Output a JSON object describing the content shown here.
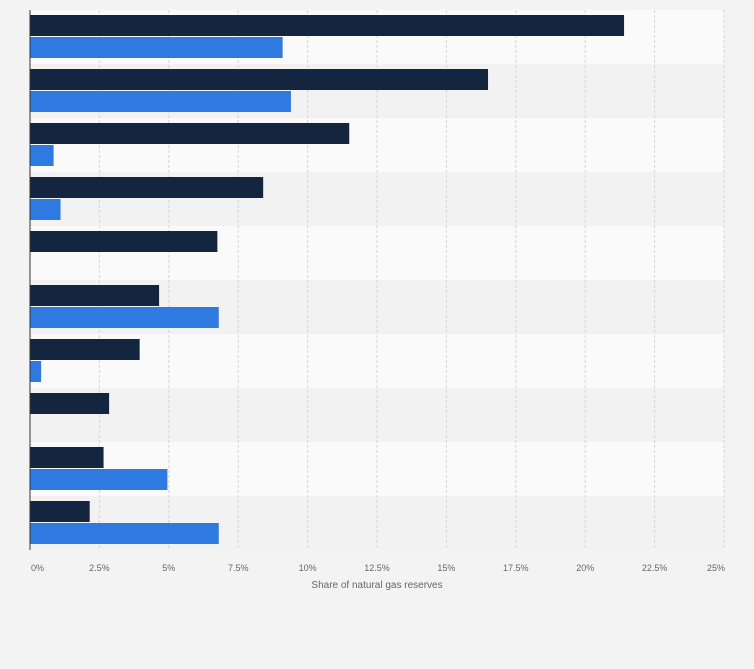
{
  "chart_data": {
    "type": "bar",
    "orientation": "horizontal",
    "categories": [
      "",
      "",
      "",
      "",
      "",
      "",
      "",
      "",
      "",
      ""
    ],
    "series": [
      {
        "values": [
          21.4,
          16.5,
          11.5,
          8.4,
          6.75,
          4.65,
          3.95,
          2.85,
          2.65,
          2.15
        ]
      },
      {
        "values": [
          9.1,
          9.4,
          0.85,
          1.1,
          null,
          6.8,
          0.4,
          null,
          4.95,
          6.8
        ]
      }
    ],
    "xlabel": "Share of natural gas reserves",
    "ylabel": "",
    "xlim": [
      0,
      25
    ],
    "x_ticks": [
      "0%",
      "2.5%",
      "5%",
      "7.5%",
      "10%",
      "12.5%",
      "15%",
      "17.5%",
      "20%",
      "22.5%",
      "25%"
    ],
    "grid": true,
    "legend": "none",
    "colors": {
      "series1": "#14263f",
      "series2": "#2f7ae0",
      "grid": "#d6d6d6",
      "band": "#f2f2f2",
      "plot_background": "#fafafa",
      "page_background": "#f3f3f3"
    }
  }
}
